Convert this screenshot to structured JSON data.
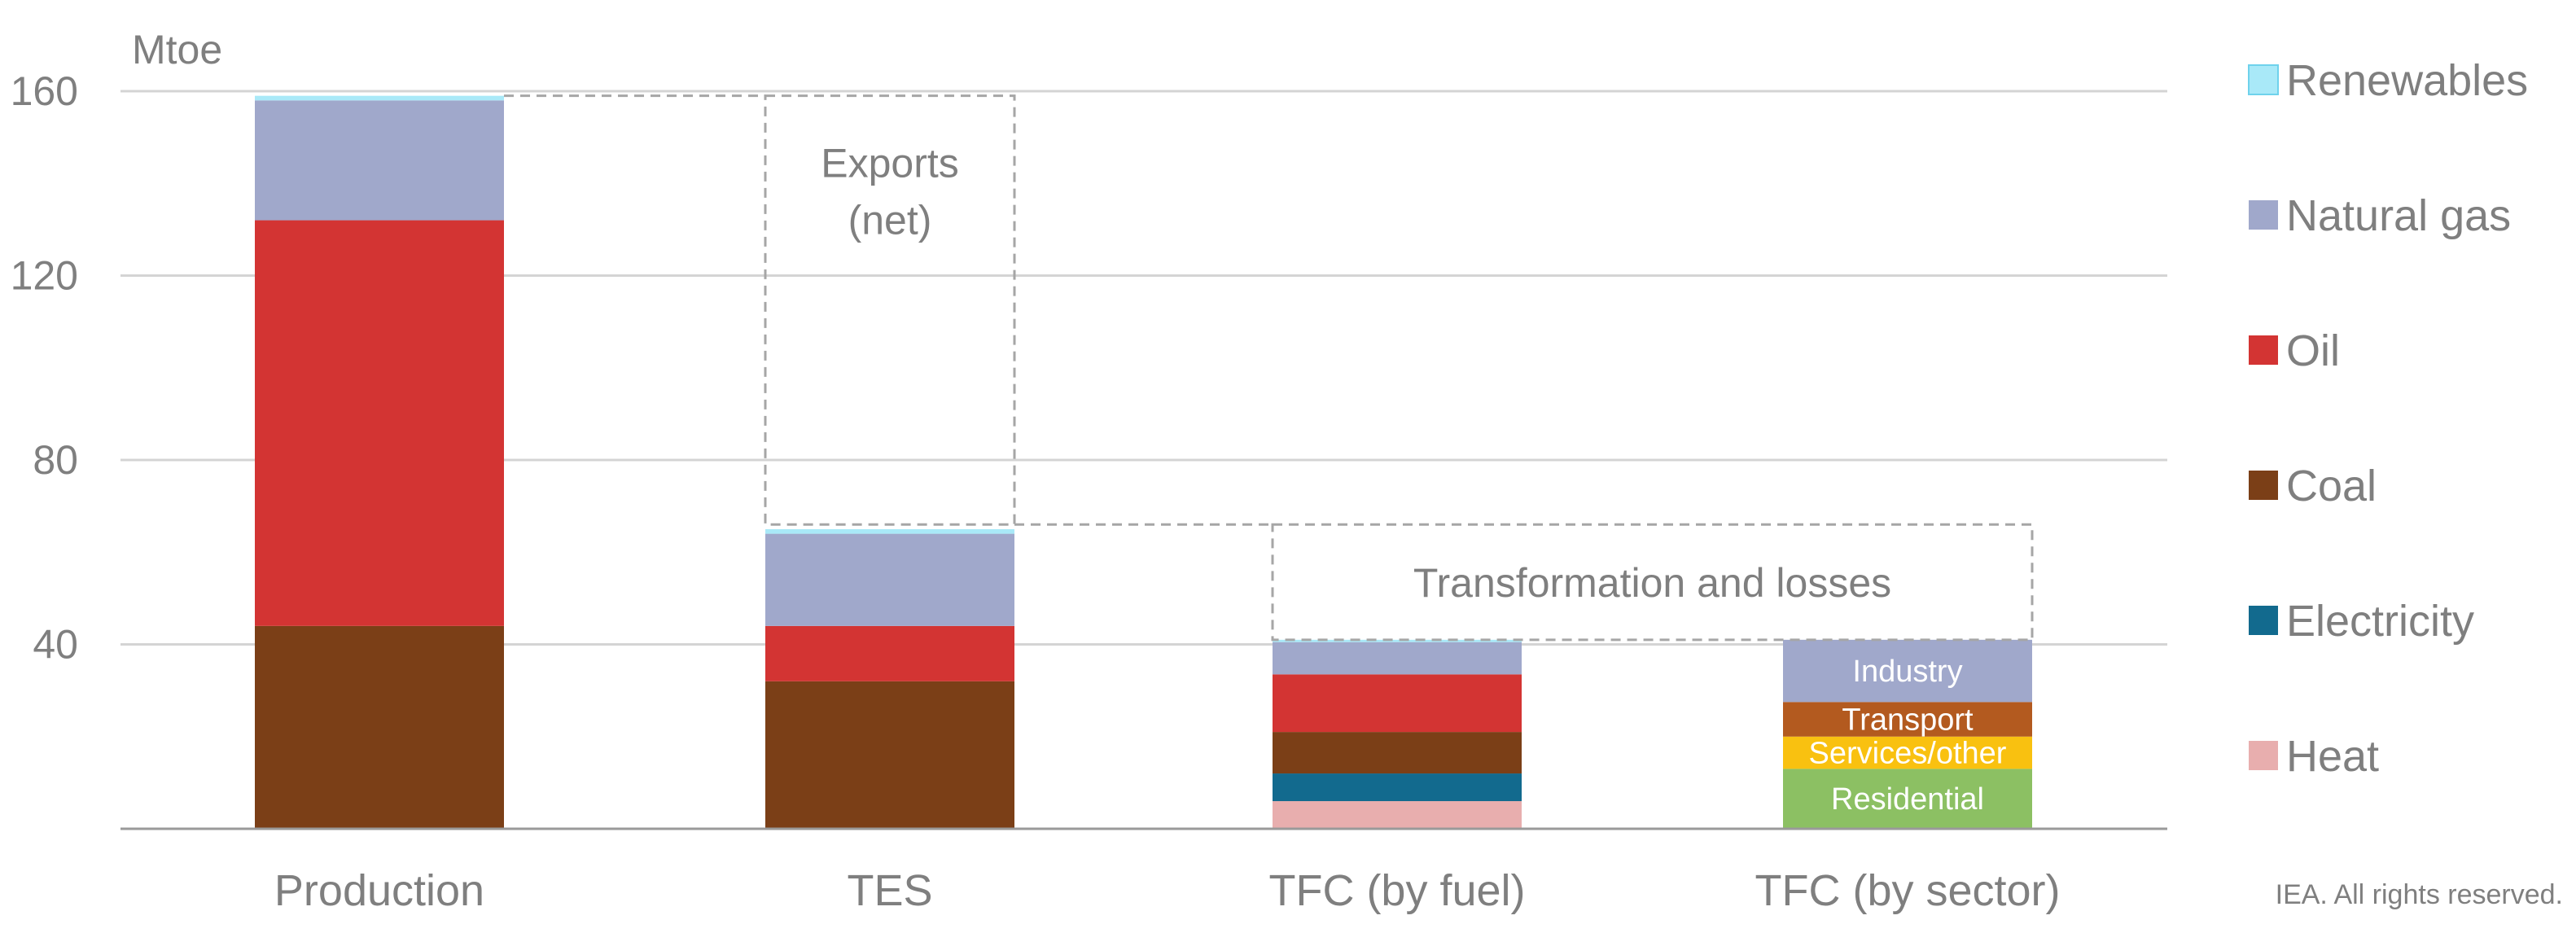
{
  "chart_data": {
    "type": "bar",
    "stacked": true,
    "ylabel": "Mtoe",
    "ylim": [
      0,
      160
    ],
    "yticks": [
      40,
      80,
      120,
      160
    ],
    "grid": true,
    "categories": [
      "Production",
      "TES",
      "TFC (by fuel)",
      "TFC (by sector)"
    ],
    "series": [
      {
        "name": "Heat",
        "color": "#E8AEAE",
        "values": [
          0,
          0,
          6,
          0
        ]
      },
      {
        "name": "Electricity",
        "color": "#126A8E",
        "values": [
          0,
          0,
          6,
          0
        ]
      },
      {
        "name": "Coal",
        "color": "#7B3F17",
        "values": [
          44,
          32,
          9,
          0
        ]
      },
      {
        "name": "Oil",
        "color": "#D33433",
        "values": [
          88,
          12,
          12.5,
          0
        ]
      },
      {
        "name": "Natural gas",
        "color": "#A0A8CB",
        "values": [
          26,
          20,
          7,
          0
        ]
      },
      {
        "name": "Renewables",
        "color": "#A9E9F8",
        "values": [
          1,
          1,
          0.5,
          0
        ]
      },
      {
        "name": "Residential",
        "color": "#8CC063",
        "values": [
          0,
          0,
          0,
          13
        ]
      },
      {
        "name": "Services/other",
        "color": "#F9C110",
        "values": [
          0,
          0,
          0,
          7
        ]
      },
      {
        "name": "Transport",
        "color": "#B35A1F",
        "values": [
          0,
          0,
          0,
          7.5
        ]
      },
      {
        "name": "Industry",
        "color": "#A0A8CB",
        "values": [
          0,
          0,
          0,
          13.5
        ]
      }
    ],
    "legend": [
      "Renewables",
      "Natural gas",
      "Oil",
      "Coal",
      "Electricity",
      "Heat"
    ],
    "legend_position": "right",
    "segment_labels": [
      "Residential",
      "Services/other",
      "Transport",
      "Industry"
    ],
    "annotations": [
      {
        "text_lines": [
          "Exports",
          "(net)"
        ],
        "category": "TES",
        "range": [
          66,
          159
        ]
      },
      {
        "text_lines": [
          "Transformation and losses"
        ],
        "categories": [
          "TFC (by fuel)",
          "TFC (by sector)"
        ],
        "range": [
          41,
          66
        ]
      }
    ],
    "credit": "IEA. All rights reserved."
  }
}
